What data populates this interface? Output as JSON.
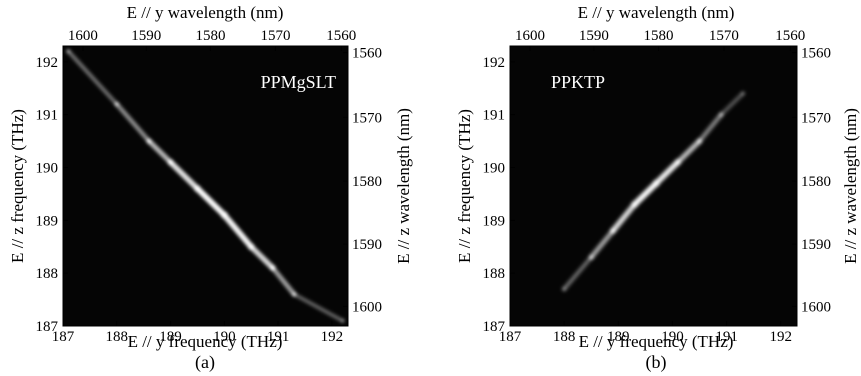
{
  "chart_data": [
    {
      "type": "heatmap",
      "panel_label": "(a)",
      "sample_label": "PPMgSLT",
      "xlabel_bottom": "E // y  frequency (THz)",
      "xlabel_top": "E // y  wavelength (nm)",
      "ylabel_left": "E // z  frequency (THz)",
      "ylabel_right": "E // z  wavelength (nm)",
      "xlim": [
        187,
        192.3
      ],
      "ylim": [
        187,
        192.3
      ],
      "x_ticks_bottom": [
        "187",
        "188",
        "189",
        "190",
        "191",
        "192"
      ],
      "y_ticks_left": [
        "187",
        "188",
        "189",
        "190",
        "191",
        "192"
      ],
      "x_ticks_top": [
        "1600",
        "1590",
        "1580",
        "1570",
        "1560"
      ],
      "y_ticks_right": [
        "1560",
        "1570",
        "1580",
        "1590",
        "1600"
      ],
      "grid": false,
      "colormap": "grayscale",
      "ridge": {
        "orientation": "anti-diagonal",
        "points": [
          {
            "x": 187.1,
            "y": 192.2,
            "intensity": 0.35
          },
          {
            "x": 188.0,
            "y": 191.2,
            "intensity": 0.45
          },
          {
            "x": 188.6,
            "y": 190.5,
            "intensity": 0.6
          },
          {
            "x": 189.0,
            "y": 190.1,
            "intensity": 0.8
          },
          {
            "x": 189.5,
            "y": 189.6,
            "intensity": 0.95
          },
          {
            "x": 190.0,
            "y": 189.1,
            "intensity": 1.0
          },
          {
            "x": 190.5,
            "y": 188.5,
            "intensity": 0.9
          },
          {
            "x": 190.9,
            "y": 188.1,
            "intensity": 0.75
          },
          {
            "x": 191.3,
            "y": 187.6,
            "intensity": 0.45
          },
          {
            "x": 192.2,
            "y": 187.1,
            "intensity": 0.25
          }
        ]
      }
    },
    {
      "type": "heatmap",
      "panel_label": "(b)",
      "sample_label": "PPKTP",
      "xlabel_bottom": "E // y  frequency (THz)",
      "xlabel_top": "E // y  wavelength (nm)",
      "ylabel_left": "E // z  frequency (THz)",
      "ylabel_right": "E // z  wavelength (nm)",
      "xlim": [
        187,
        192.3
      ],
      "ylim": [
        187,
        192.3
      ],
      "x_ticks_bottom": [
        "187",
        "188",
        "189",
        "190",
        "191",
        "192"
      ],
      "y_ticks_left": [
        "187",
        "188",
        "189",
        "190",
        "191",
        "192"
      ],
      "x_ticks_top": [
        "1600",
        "1590",
        "1580",
        "1570",
        "1560"
      ],
      "y_ticks_right": [
        "1560",
        "1570",
        "1580",
        "1590",
        "1600"
      ],
      "grid": false,
      "colormap": "grayscale",
      "ridge": {
        "orientation": "diagonal",
        "points": [
          {
            "x": 188.0,
            "y": 187.7,
            "intensity": 0.3
          },
          {
            "x": 188.5,
            "y": 188.3,
            "intensity": 0.5
          },
          {
            "x": 188.9,
            "y": 188.8,
            "intensity": 0.75
          },
          {
            "x": 189.3,
            "y": 189.3,
            "intensity": 0.95
          },
          {
            "x": 189.7,
            "y": 189.7,
            "intensity": 1.0
          },
          {
            "x": 190.1,
            "y": 190.1,
            "intensity": 0.85
          },
          {
            "x": 190.5,
            "y": 190.5,
            "intensity": 0.6
          },
          {
            "x": 190.9,
            "y": 191.0,
            "intensity": 0.4
          },
          {
            "x": 191.3,
            "y": 191.4,
            "intensity": 0.25
          }
        ]
      }
    }
  ],
  "colors": {
    "plot_background": "#050505",
    "ridge": "#ffffff",
    "axes": "#000000"
  }
}
